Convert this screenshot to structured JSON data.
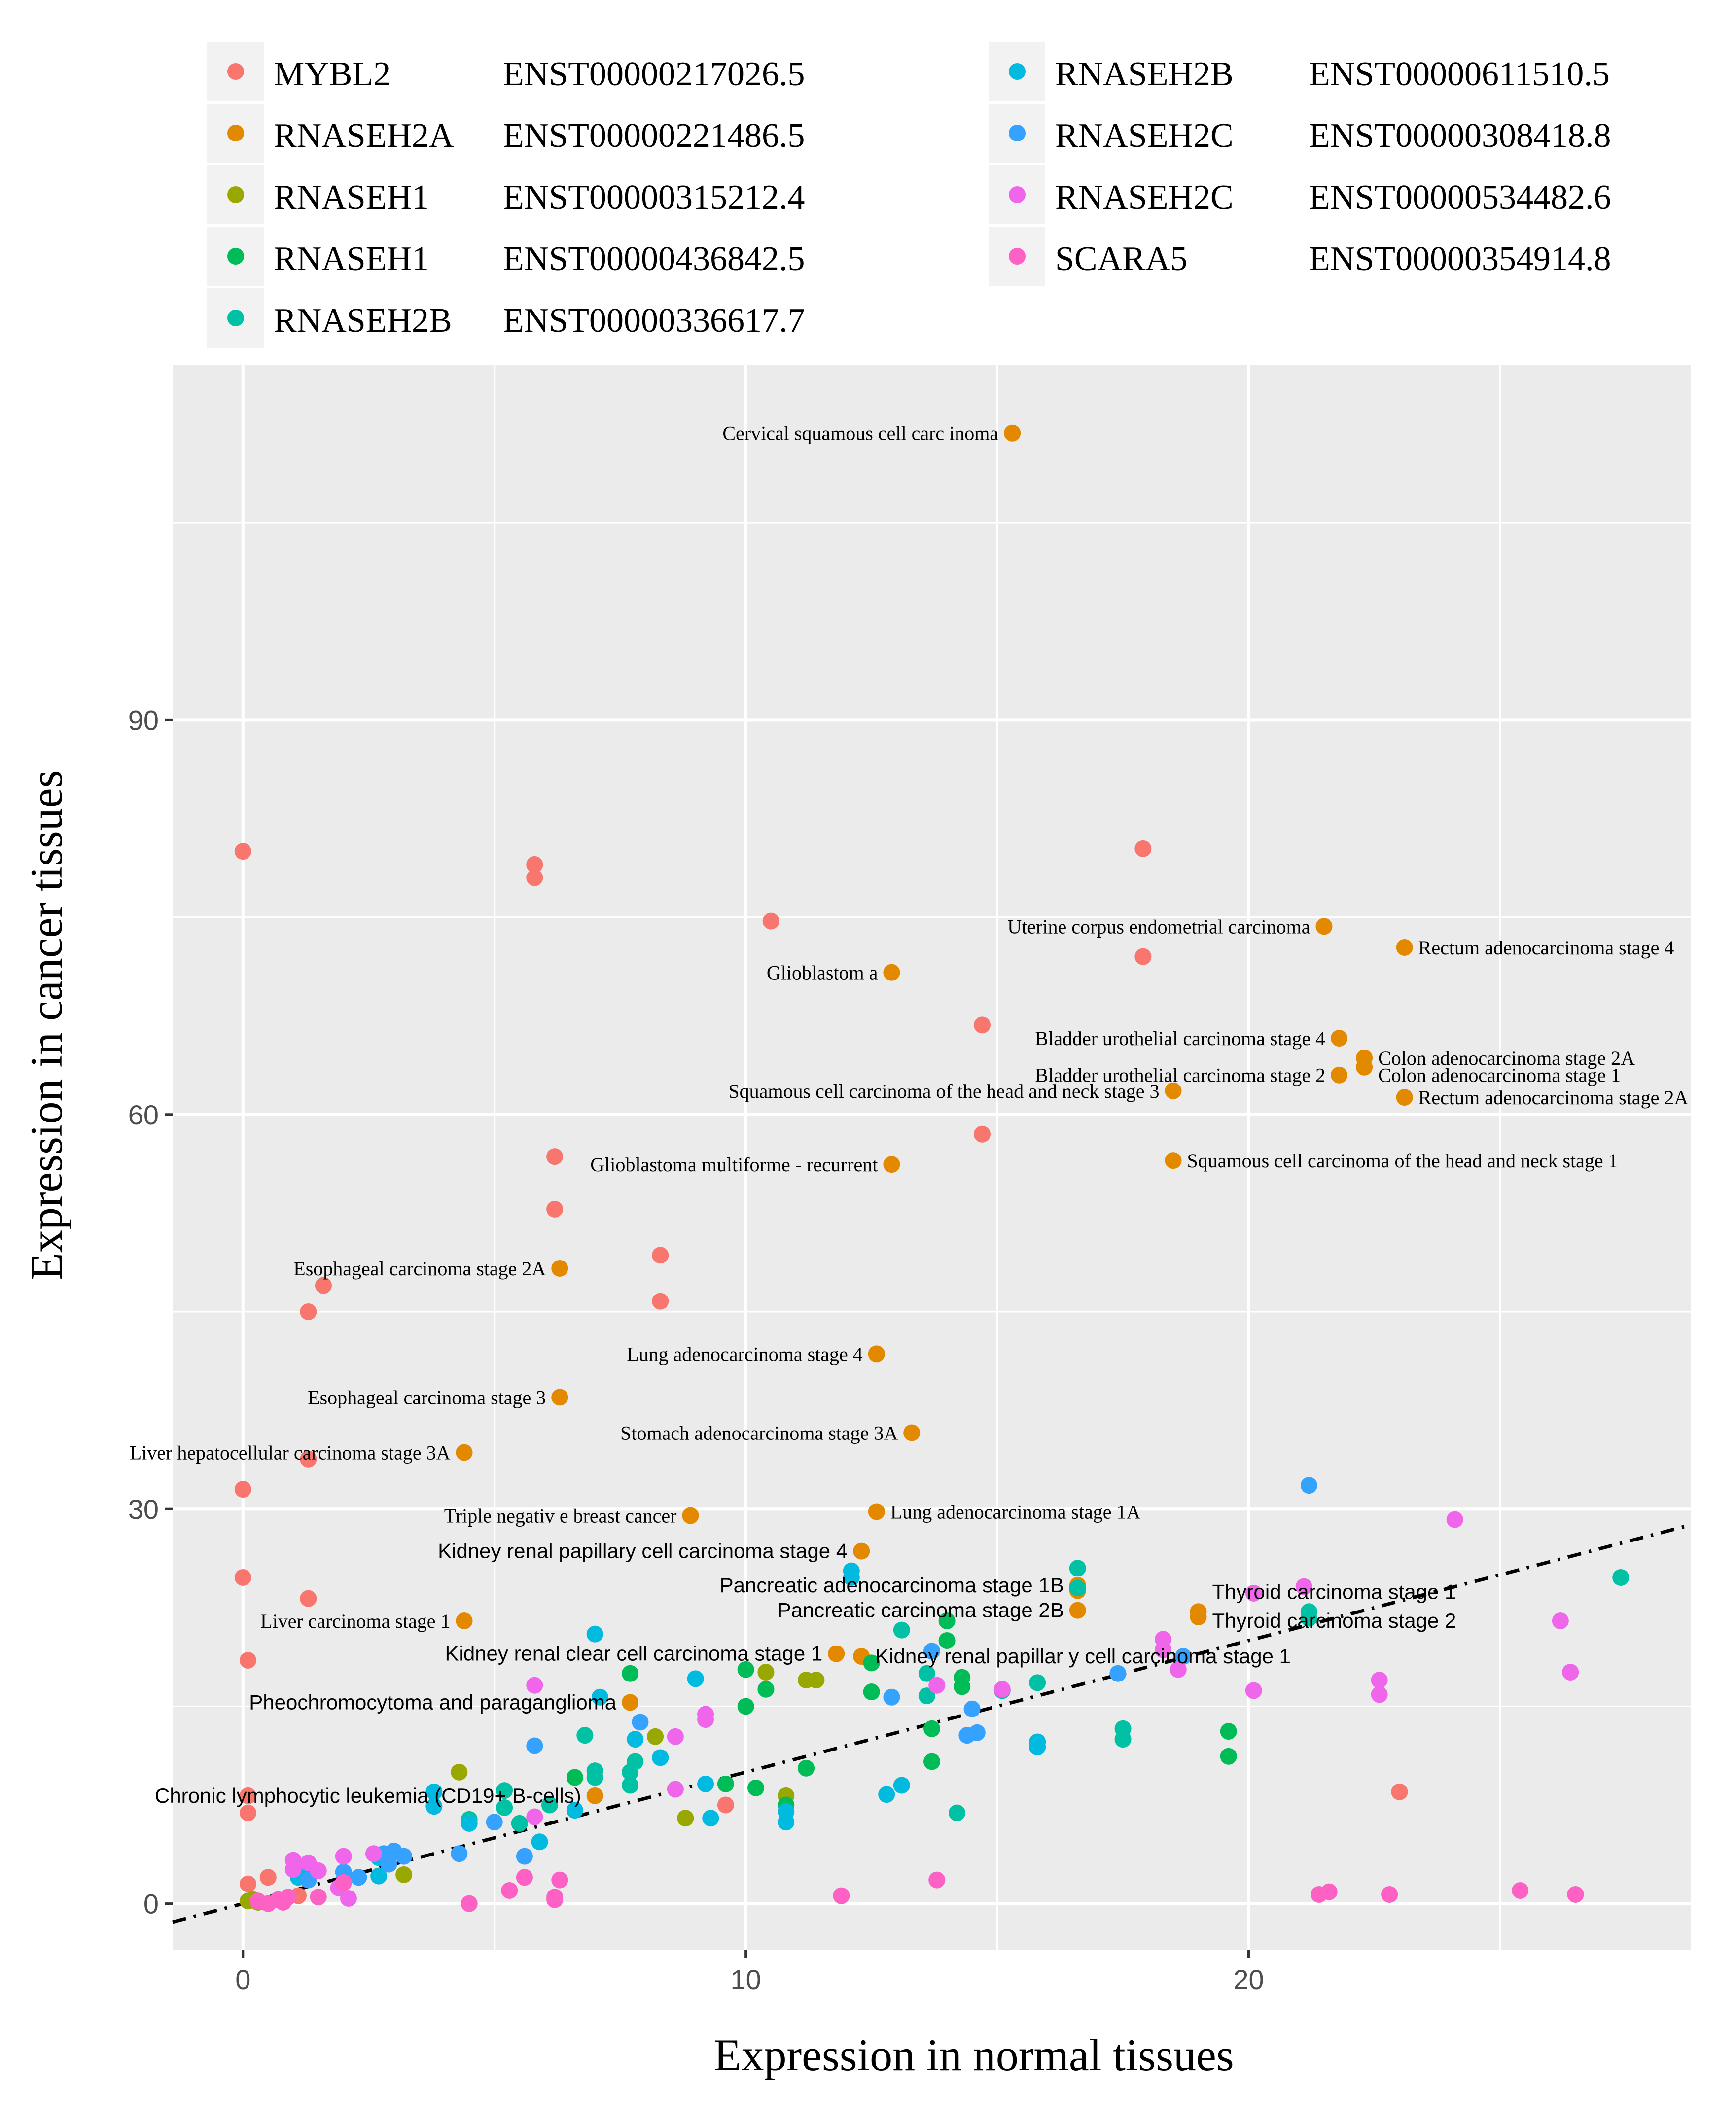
{
  "chart_data": {
    "type": "scatter",
    "xlabel": "Expression in normal tissues",
    "ylabel": "Expression in cancer tissues",
    "xlim": [
      -1.4,
      28.8
    ],
    "ylim": [
      -3.5,
      117
    ],
    "xticks": [
      0,
      10,
      20
    ],
    "yticks": [
      0,
      30,
      60,
      90
    ],
    "xtick_labels": [
      "0",
      "10",
      "20"
    ],
    "ytick_labels": [
      "0",
      "30",
      "60",
      "90"
    ],
    "grid": true,
    "legend_position": "top",
    "reference_line": {
      "style": "dot-dash",
      "x": [
        -1.4,
        28.8
      ],
      "y": [
        -1.4,
        28.8
      ]
    },
    "series": [
      {
        "name": "MYBL2",
        "transcript": "ENST00000217026.5",
        "color": "#F8766D",
        "points": [
          [
            0,
            80
          ],
          [
            5.8,
            79
          ],
          [
            5.8,
            78
          ],
          [
            17.9,
            80.2
          ],
          [
            10.5,
            74.7
          ],
          [
            17.9,
            72
          ],
          [
            14.7,
            66.8
          ],
          [
            14.7,
            58.5
          ],
          [
            6.2,
            56.8
          ],
          [
            6.2,
            52.8
          ],
          [
            8.3,
            49.3
          ],
          [
            8.3,
            45.8
          ],
          [
            1.6,
            47
          ],
          [
            1.3,
            45
          ],
          [
            1.3,
            33.8
          ],
          [
            0,
            31.5
          ],
          [
            0,
            24.8
          ],
          [
            1.3,
            23.2
          ],
          [
            0.1,
            18.5
          ],
          [
            0.1,
            8.2
          ],
          [
            0.1,
            6.9
          ],
          [
            9.6,
            7.5
          ],
          [
            23,
            8.5
          ],
          [
            0.1,
            1.5
          ],
          [
            0.5,
            2
          ],
          [
            1.1,
            0.6
          ]
        ]
      },
      {
        "name": "RNASEH2A",
        "transcript": "ENST00000221486.5",
        "color": "#E38900",
        "points": [
          [
            15.3,
            111.8
          ],
          [
            21.5,
            74.3
          ],
          [
            23.1,
            72.7
          ],
          [
            12.9,
            70.8
          ],
          [
            21.8,
            65.8
          ],
          [
            22.3,
            64.3
          ],
          [
            22.3,
            63.6
          ],
          [
            21.8,
            63
          ],
          [
            18.5,
            61.8
          ],
          [
            23.1,
            61.3
          ],
          [
            12.9,
            56.2
          ],
          [
            18.5,
            56.5
          ],
          [
            6.3,
            48.3
          ],
          [
            12.6,
            41.8
          ],
          [
            6.3,
            38.5
          ],
          [
            13.3,
            35.8
          ],
          [
            4.4,
            34.3
          ],
          [
            12.6,
            29.8
          ],
          [
            8.9,
            29.5
          ],
          [
            12.3,
            26.8
          ],
          [
            16.6,
            24.2
          ],
          [
            16.6,
            23.8
          ],
          [
            16.6,
            22.3
          ],
          [
            19,
            22.2
          ],
          [
            19,
            21.8
          ],
          [
            4.4,
            21.5
          ],
          [
            11.8,
            19
          ],
          [
            12.3,
            18.8
          ],
          [
            7.7,
            15.3
          ],
          [
            7.0,
            8.2
          ]
        ]
      },
      {
        "name": "RNASEH1",
        "transcript": "ENST00000315212.4",
        "color": "#99A800",
        "points": [
          [
            10.4,
            17.6
          ],
          [
            11.2,
            17
          ],
          [
            11.4,
            17
          ],
          [
            8.2,
            12.7
          ],
          [
            4.3,
            10
          ],
          [
            10.8,
            8.2
          ],
          [
            8.8,
            6.5
          ],
          [
            3.2,
            2.2
          ],
          [
            0.1,
            0.2
          ],
          [
            0.2,
            0.3
          ],
          [
            0.3,
            0.1
          ]
        ]
      },
      {
        "name": "RNASEH1",
        "transcript": "ENST00000436842.5",
        "color": "#06A4FF",
        "points": []
      },
      {
        "name": "RNASEH1",
        "transcript": "ENST00000436842.5",
        "color": "#00BC56",
        "points": [
          [
            14,
            21.5
          ],
          [
            14,
            20
          ],
          [
            10,
            17.8
          ],
          [
            7.7,
            17.5
          ],
          [
            10.4,
            16.3
          ],
          [
            12.5,
            18.3
          ],
          [
            12.5,
            16.1
          ],
          [
            14.3,
            17.2
          ],
          [
            14.3,
            16.5
          ],
          [
            10,
            15
          ],
          [
            19.6,
            13.1
          ],
          [
            19.6,
            11.2
          ],
          [
            13.7,
            13.3
          ],
          [
            11.2,
            10.3
          ],
          [
            13.7,
            10.8
          ],
          [
            6.6,
            9.6
          ],
          [
            9.6,
            9.1
          ],
          [
            10.2,
            8.8
          ],
          [
            10.8,
            7.5
          ]
        ]
      },
      {
        "name": "RNASEH2B",
        "transcript": "ENST00000336617.7",
        "color": "#00C1A3",
        "points": [
          [
            16.6,
            25.5
          ],
          [
            27.4,
            24.8
          ],
          [
            21.2,
            22.2
          ],
          [
            21.2,
            21.7
          ],
          [
            13.1,
            20.8
          ],
          [
            16.6,
            24
          ],
          [
            13.6,
            17.5
          ],
          [
            15.8,
            16.8
          ],
          [
            13.6,
            15.8
          ],
          [
            6.8,
            12.8
          ],
          [
            7.0,
            10.1
          ],
          [
            7.0,
            9.6
          ],
          [
            7.8,
            10.8
          ],
          [
            7.7,
            10
          ],
          [
            7.7,
            9
          ],
          [
            5.2,
            8.6
          ],
          [
            5.2,
            7.3
          ],
          [
            6.1,
            7.5
          ],
          [
            4.5,
            6.4
          ],
          [
            14.2,
            6.9
          ],
          [
            17.5,
            13.3
          ],
          [
            17.5,
            12.5
          ],
          [
            15.1,
            16.2
          ],
          [
            5.5,
            6.1
          ]
        ]
      },
      {
        "name": "RNASEH2B",
        "transcript": "ENST00000611510.5",
        "color": "#00BAE0",
        "points": [
          [
            7.0,
            20.5
          ],
          [
            12.1,
            25.3
          ],
          [
            12.1,
            24.8
          ],
          [
            7.1,
            15.7
          ],
          [
            9.0,
            17.1
          ],
          [
            7.8,
            12.5
          ],
          [
            8.3,
            11.1
          ],
          [
            10.8,
            6.2
          ],
          [
            10.8,
            7
          ],
          [
            9.2,
            9.1
          ],
          [
            9.3,
            6.5
          ],
          [
            12.8,
            8.3
          ],
          [
            13.1,
            9
          ],
          [
            15.8,
            12.3
          ],
          [
            15.8,
            11.9
          ],
          [
            4.5,
            6.1
          ],
          [
            5.9,
            4.7
          ],
          [
            3.8,
            8.5
          ],
          [
            3.8,
            7.4
          ],
          [
            6.6,
            7.1
          ],
          [
            2.7,
            2.1
          ],
          [
            2.7,
            3.5
          ],
          [
            1.2,
            2.6
          ],
          [
            1.1,
            2
          ]
        ]
      },
      {
        "name": "RNASEH2C",
        "transcript": "ENST00000308418.8",
        "color": "#35A2FF",
        "points": [
          [
            21.2,
            31.8
          ],
          [
            17.4,
            17.5
          ],
          [
            18.7,
            18.8
          ],
          [
            13.7,
            19.2
          ],
          [
            12.9,
            15.7
          ],
          [
            14.5,
            14.8
          ],
          [
            14.4,
            12.8
          ],
          [
            14.6,
            13
          ],
          [
            5.8,
            12
          ],
          [
            7.9,
            13.8
          ],
          [
            5.0,
            6.2
          ],
          [
            5.6,
            3.6
          ],
          [
            4.3,
            3.8
          ],
          [
            2.8,
            3.8
          ],
          [
            3.0,
            4
          ],
          [
            2.9,
            3
          ],
          [
            2.3,
            2
          ],
          [
            2.0,
            2.4
          ],
          [
            1.3,
            1.8
          ],
          [
            3.2,
            3.6
          ]
        ]
      },
      {
        "name": "RNASEH2C",
        "transcript": "ENST00000534482.6",
        "color": "#F066EA",
        "points": [
          [
            24.1,
            29.2
          ],
          [
            21.1,
            24.1
          ],
          [
            20.1,
            23.6
          ],
          [
            26.2,
            21.5
          ],
          [
            18.3,
            20.1
          ],
          [
            18.3,
            19.3
          ],
          [
            18.6,
            17.8
          ],
          [
            22.6,
            17
          ],
          [
            26.4,
            17.6
          ],
          [
            20.1,
            16.2
          ],
          [
            22.6,
            15.9
          ],
          [
            13.8,
            16.6
          ],
          [
            15.1,
            16.3
          ],
          [
            5.8,
            16.6
          ],
          [
            9.2,
            14.4
          ],
          [
            9.2,
            14
          ],
          [
            8.6,
            12.7
          ],
          [
            8.6,
            8.7
          ],
          [
            5.8,
            6.6
          ],
          [
            1.0,
            3.3
          ],
          [
            1.0,
            2.6
          ],
          [
            1.3,
            3.1
          ],
          [
            1.5,
            2.5
          ],
          [
            2.0,
            3.6
          ],
          [
            2.6,
            3.8
          ],
          [
            1.9,
            1.2
          ],
          [
            2.1,
            0.4
          ]
        ]
      },
      {
        "name": "SCARA5",
        "transcript": "ENST00000354914.8",
        "color": "#FC61C3",
        "points": [
          [
            25.4,
            1.0
          ],
          [
            26.5,
            0.7
          ],
          [
            21.6,
            0.9
          ],
          [
            21.4,
            0.7
          ],
          [
            22.8,
            0.7
          ],
          [
            11.9,
            0.6
          ],
          [
            13.8,
            1.8
          ],
          [
            6.3,
            1.8
          ],
          [
            6.2,
            0.5
          ],
          [
            6.2,
            0.3
          ],
          [
            5.6,
            2
          ],
          [
            5.3,
            1
          ],
          [
            4.5,
            0
          ],
          [
            2.0,
            1.6
          ],
          [
            1.5,
            0.5
          ],
          [
            0.9,
            0.5
          ],
          [
            0.7,
            0.3
          ],
          [
            0.5,
            0
          ],
          [
            0.3,
            0.2
          ],
          [
            0.8,
            0.1
          ]
        ]
      }
    ],
    "labels": [
      {
        "text": "Cervical squamous cell carc inoma",
        "x": 15.3,
        "y": 111.8,
        "align": "end",
        "font": "serif"
      },
      {
        "text": "Uterine corpus endometrial carcinoma",
        "x": 21.5,
        "y": 74.3,
        "align": "end",
        "font": "serif"
      },
      {
        "text": "Rectum adenocarcinoma stage 4",
        "x": 23.1,
        "y": 72.7,
        "align": "start",
        "font": "serif"
      },
      {
        "text": "Glioblastom a",
        "x": 12.9,
        "y": 70.8,
        "align": "end",
        "font": "serif"
      },
      {
        "text": "Bladder urothelial carcinoma stage 4",
        "x": 21.8,
        "y": 65.8,
        "align": "end",
        "font": "serif"
      },
      {
        "text": "Colon adenocarcinoma stage 2A",
        "x": 22.3,
        "y": 64.3,
        "align": "start",
        "font": "serif"
      },
      {
        "text": "Colon adenocarcinoma stage 1",
        "x": 22.3,
        "y": 63.0,
        "align": "start",
        "font": "serif"
      },
      {
        "text": "Bladder urothelial carcinoma stage 2",
        "x": 21.8,
        "y": 63.0,
        "align": "end",
        "font": "serif"
      },
      {
        "text": "Squamous cell carcinoma of  the head and neck stage 3",
        "x": 18.5,
        "y": 61.8,
        "align": "end",
        "font": "serif"
      },
      {
        "text": "Rectum adenocarcinoma stage 2A",
        "x": 23.1,
        "y": 61.3,
        "align": "start",
        "font": "serif"
      },
      {
        "text": "Glioblastoma multiforme - recurrent",
        "x": 12.9,
        "y": 56.2,
        "align": "end",
        "font": "serif"
      },
      {
        "text": "Squamous cell carcinoma of the head and neck stage 1",
        "x": 18.5,
        "y": 56.5,
        "align": "start",
        "font": "serif"
      },
      {
        "text": "Esophageal carcinoma stage 2A",
        "x": 6.3,
        "y": 48.3,
        "align": "end",
        "font": "serif"
      },
      {
        "text": "Lung adenocarcinoma stage 4",
        "x": 12.6,
        "y": 41.8,
        "align": "end",
        "font": "serif"
      },
      {
        "text": "Esophageal carcinoma stage 3",
        "x": 6.3,
        "y": 38.5,
        "align": "end",
        "font": "serif"
      },
      {
        "text": "Stomach adenocarcinoma stage 3A",
        "x": 13.3,
        "y": 35.8,
        "align": "end",
        "font": "serif"
      },
      {
        "text": "Liver hepatocellular carcinoma stage 3A",
        "x": 4.4,
        "y": 34.3,
        "align": "end",
        "font": "serif"
      },
      {
        "text": "Triple negativ e breast cancer",
        "x": 8.9,
        "y": 29.5,
        "align": "end",
        "font": "serif"
      },
      {
        "text": "Lung adenocarcinoma stage 1A",
        "x": 12.6,
        "y": 29.8,
        "align": "start",
        "font": "serif"
      },
      {
        "text": "Kidney renal papillary cell carcinoma stage 4",
        "x": 12.3,
        "y": 26.8,
        "align": "end",
        "font": "sans"
      },
      {
        "text": "Pancreatic adenocarcinoma stage 1B",
        "x": 16.6,
        "y": 24.2,
        "align": "end",
        "font": "sans"
      },
      {
        "text": "Pancreatic carcinoma stage 2B",
        "x": 16.6,
        "y": 22.3,
        "align": "end",
        "font": "sans"
      },
      {
        "text": "Thyroid carcinoma stage 1",
        "x": 19.0,
        "y": 23.7,
        "align": "start",
        "font": "sans"
      },
      {
        "text": "Thyroid carcinoma stage 2",
        "x": 19.0,
        "y": 21.5,
        "align": "start",
        "font": "sans"
      },
      {
        "text": "Liver carcinoma stage 1",
        "x": 4.4,
        "y": 21.5,
        "align": "end",
        "font": "serif"
      },
      {
        "text": "Kidney renal clear cell carcinoma  stage 1",
        "x": 11.8,
        "y": 19.0,
        "align": "end",
        "font": "sans"
      },
      {
        "text": "Kidney renal papillar y cell carcinoma stage 1",
        "x": 12.3,
        "y": 18.8,
        "align": "start",
        "font": "sans"
      },
      {
        "text": "Pheochromocytoma and paraganglioma",
        "x": 7.7,
        "y": 15.3,
        "align": "end",
        "font": "sans"
      },
      {
        "text": "Chronic lymphocytic leukemia (CD19+ B-cells)",
        "x": 7.0,
        "y": 8.2,
        "align": "end",
        "font": "sans"
      }
    ]
  }
}
